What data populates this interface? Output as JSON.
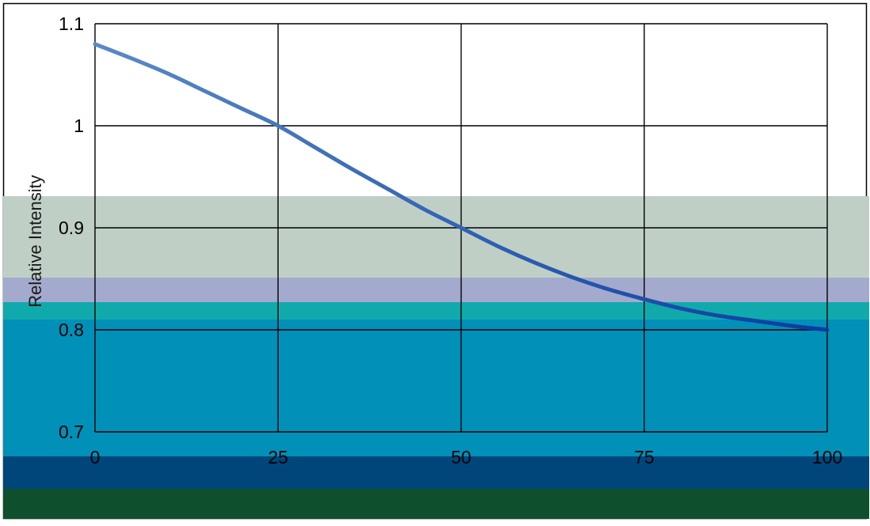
{
  "chart_data": {
    "type": "line",
    "title": "",
    "xlabel": "",
    "ylabel": "Relative Intensity",
    "xlim": [
      0,
      100
    ],
    "ylim": [
      0.7,
      1.1
    ],
    "x_ticks": [
      "0",
      "25",
      "50",
      "75",
      "100"
    ],
    "y_ticks": [
      "1.1",
      "1",
      "0.9",
      "0.8",
      "0.7"
    ],
    "grid": true,
    "series": [
      {
        "color": "#4f81bd",
        "x": [
          0,
          5,
          10,
          15,
          20,
          25,
          30,
          35,
          40,
          45,
          50,
          55,
          60,
          65,
          70,
          75,
          80,
          85,
          90,
          95,
          100
        ],
        "y": [
          1.08,
          1.066,
          1.051,
          1.034,
          1.017,
          1.0,
          0.979,
          0.958,
          0.938,
          0.918,
          0.9,
          0.882,
          0.866,
          0.852,
          0.84,
          0.83,
          0.821,
          0.814,
          0.809,
          0.804,
          0.8
        ]
      }
    ],
    "overlay_bands": [
      {
        "color": "#bfcfc6"
      },
      {
        "color": "#a3aacd"
      },
      {
        "color": "#10aaac"
      },
      {
        "color": "#0090b8"
      },
      {
        "color": "#00467a"
      },
      {
        "color": "#0e4f2e"
      }
    ],
    "colors": {
      "background": "#ffffff",
      "grid": "#000000",
      "axis_text": "#000000",
      "line_start": "#5a8ac6",
      "line_end": "#0a3ba0"
    }
  }
}
